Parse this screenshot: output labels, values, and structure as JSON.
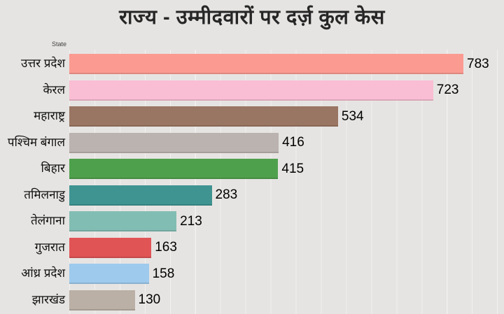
{
  "title": "राज्य - उम्मीदवारों पर दर्ज़ कुल केस",
  "axis": {
    "label": "State"
  },
  "chart_data": {
    "type": "bar",
    "orientation": "horizontal",
    "title": "राज्य - उम्मीदवारों पर दर्ज़ कुल केस",
    "xlabel": "",
    "ylabel": "State",
    "xlim": [
      0,
      860
    ],
    "grid": true,
    "gridline_interval": 50,
    "legend": "none",
    "categories": [
      "उत्तर प्रदेश",
      "केरल",
      "महाराष्ट्र",
      "पश्चिम बंगाल",
      "बिहार",
      "तमिलनाडु",
      "तेलंगाना",
      "गुजरात",
      "आंध्र प्रदेश",
      "झारखंड"
    ],
    "values": [
      783,
      723,
      534,
      416,
      415,
      283,
      213,
      163,
      158,
      130
    ],
    "bar_colors": [
      "#FB9A91",
      "#F9BED3",
      "#997663",
      "#BBB3AF",
      "#4FA04D",
      "#3F9491",
      "#82BDB3",
      "#E05456",
      "#9ECAED",
      "#BAB0A5"
    ]
  },
  "colors": {
    "background": "#E6E4E2",
    "gridline": "#F2F1EF",
    "title_text": "#262626",
    "value_text": "#000000"
  }
}
